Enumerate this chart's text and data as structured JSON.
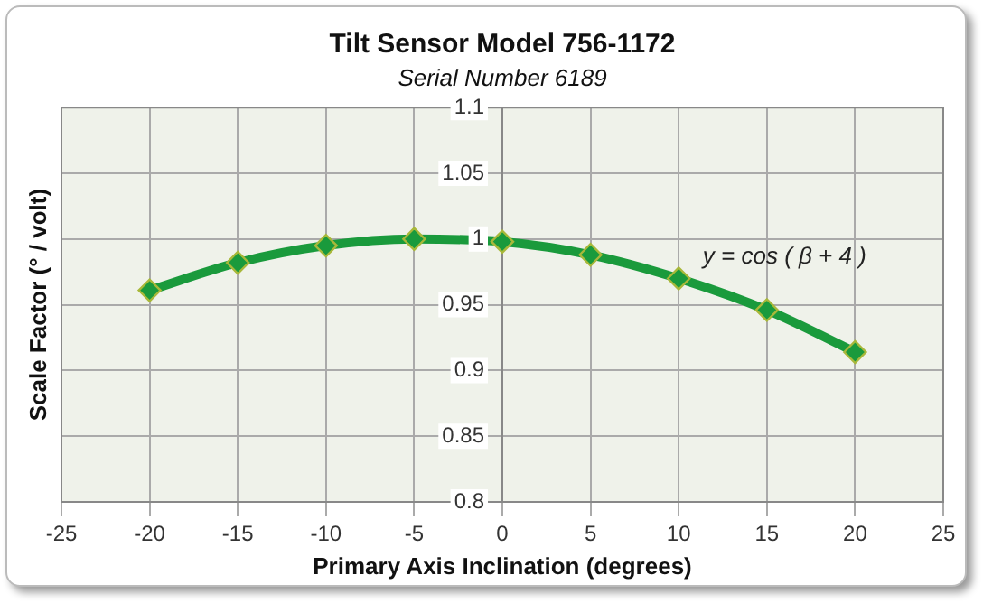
{
  "chart_data": {
    "type": "line",
    "title": "Tilt Sensor Model 756-1172",
    "subtitle": "Serial Number 6189",
    "xlabel": "Primary Axis Inclination (degrees)",
    "ylabel": "Scale Factor (° / volt)",
    "x": [
      -20,
      -15,
      -10,
      -5,
      0,
      5,
      10,
      15,
      20
    ],
    "series": [
      {
        "color": "#1a9a3c",
        "values": [
          0.961,
          0.982,
          0.995,
          1.0,
          0.998,
          0.988,
          0.97,
          0.946,
          0.914
        ]
      }
    ],
    "xlim": [
      -25,
      25
    ],
    "xticks": [
      -25,
      -20,
      -15,
      -10,
      -5,
      0,
      5,
      10,
      15,
      20,
      25
    ],
    "ylim": [
      0.8,
      1.1
    ],
    "yticks": [
      0.8,
      0.85,
      0.9,
      0.95,
      1,
      1.05,
      1.1
    ],
    "annotations": [
      "y = cos ( β + 4 )"
    ],
    "grid": true,
    "legend": false,
    "marker": "diamond",
    "line_style": "solid"
  }
}
